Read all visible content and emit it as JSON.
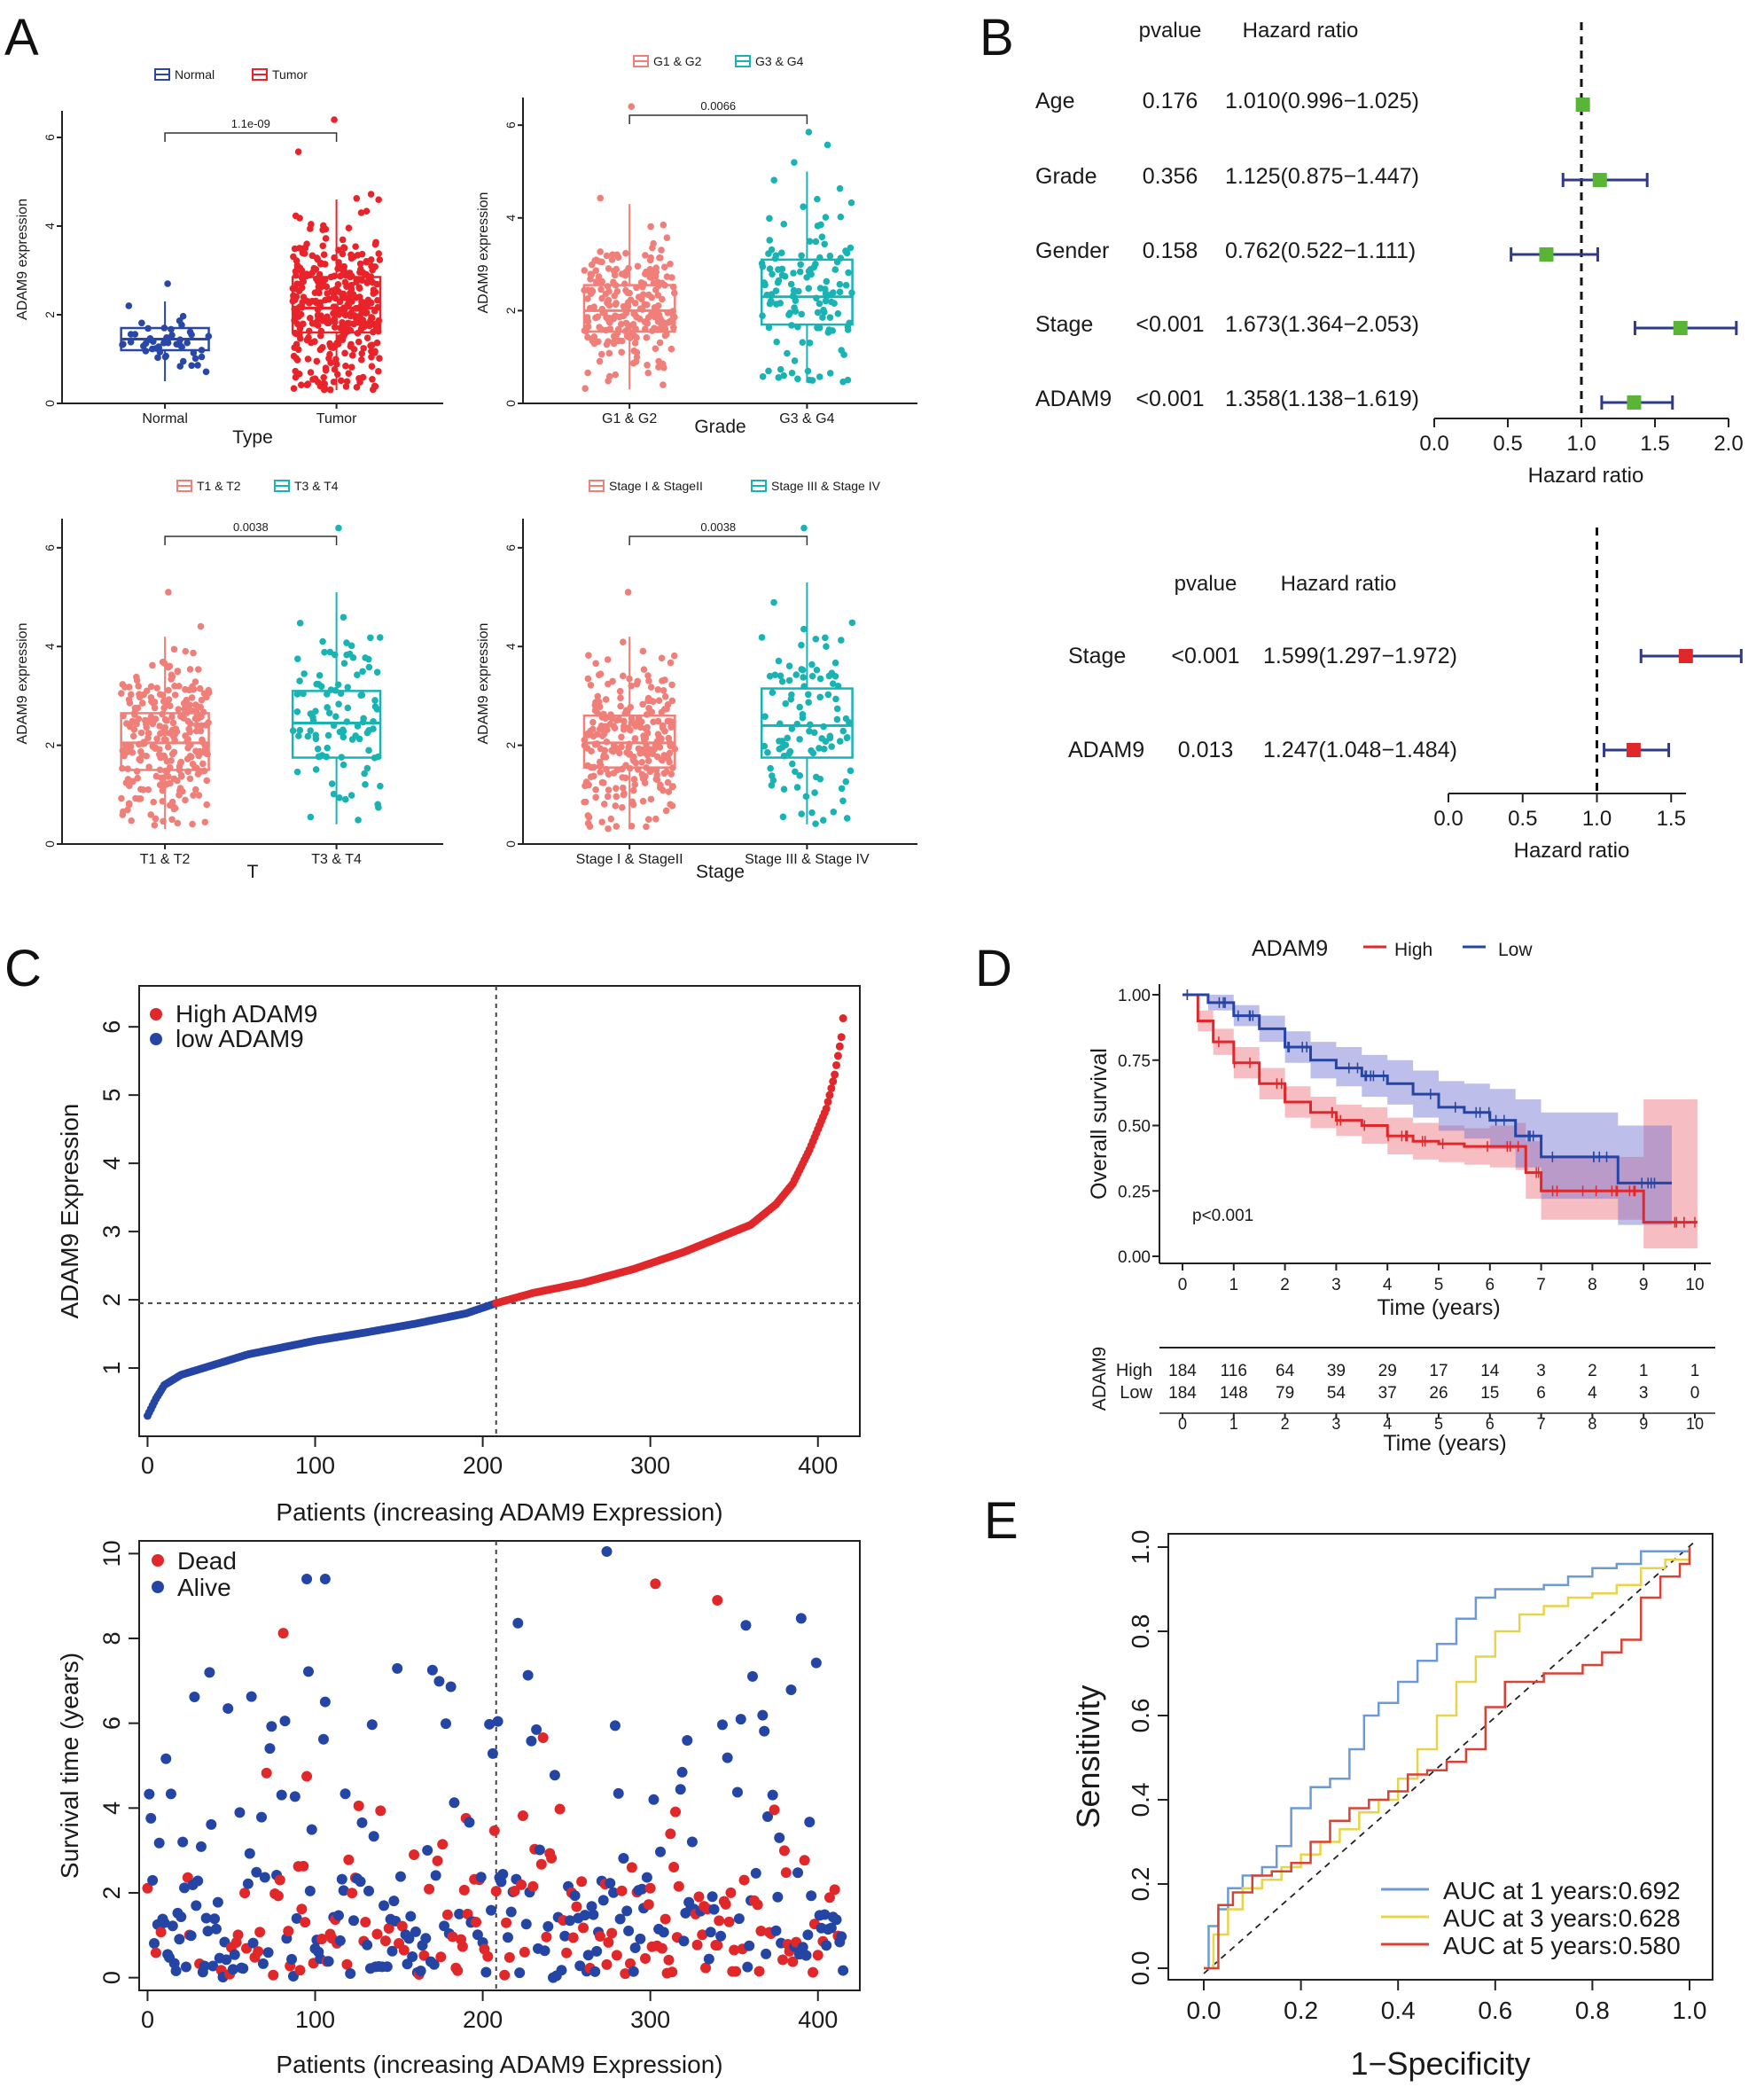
{
  "panel_letters": [
    "A",
    "B",
    "C",
    "D",
    "E"
  ],
  "colors": {
    "normal": "#2847a8",
    "tumor": "#e8242a",
    "salmon": "#ef7f78",
    "teal": "#1ab3b3",
    "green": "#5ab435",
    "navy": "#2f3b8a",
    "red": "#e0282b",
    "blue": "#2545a5",
    "roc1": "#6d9ad6",
    "roc3": "#e8d44a",
    "roc5": "#d74335"
  },
  "chart_data": [
    {
      "id": "A1",
      "type": "box",
      "legend": [
        "Normal",
        "Tumor"
      ],
      "categories": [
        "Normal",
        "Tumor"
      ],
      "xlabel": "Type",
      "ylabel": "ADAM9 expression",
      "ylim": [
        0,
        6.5
      ],
      "yticks": [
        0,
        2,
        4,
        6
      ],
      "pvalue": "1.1e-09",
      "groups": [
        {
          "name": "Normal",
          "q1": 1.2,
          "median": 1.45,
          "q3": 1.7,
          "whisker_low": 0.5,
          "whisker_high": 2.3,
          "max": 2.7,
          "n": 50
        },
        {
          "name": "Tumor",
          "q1": 1.6,
          "median": 2.15,
          "q3": 2.85,
          "whisker_low": 0.3,
          "whisker_high": 4.6,
          "max": 6.4,
          "n": 374
        }
      ]
    },
    {
      "id": "A2",
      "type": "box",
      "legend": [
        "G1 & G2",
        "G3 & G4"
      ],
      "categories": [
        "G1 & G2",
        "G3 & G4"
      ],
      "xlabel": "Grade",
      "ylabel": "ADAM9 expression",
      "ylim": [
        0,
        6.5
      ],
      "yticks": [
        0,
        2,
        4,
        6
      ],
      "pvalue": "0.0066",
      "groups": [
        {
          "name": "G1 & G2",
          "q1": 1.55,
          "median": 2.0,
          "q3": 2.55,
          "whisker_low": 0.3,
          "whisker_high": 4.3,
          "max": 6.4,
          "n": 230
        },
        {
          "name": "G3 & G4",
          "q1": 1.7,
          "median": 2.3,
          "q3": 3.1,
          "whisker_low": 0.45,
          "whisker_high": 5.0,
          "max": 5.85,
          "n": 130
        }
      ]
    },
    {
      "id": "A3",
      "type": "box",
      "legend": [
        "T1 & T2",
        "T3 & T4"
      ],
      "categories": [
        "T1 & T2",
        "T3 & T4"
      ],
      "xlabel": "T",
      "ylabel": "ADAM9 expression",
      "ylim": [
        0,
        6.5
      ],
      "yticks": [
        0,
        2,
        4,
        6
      ],
      "pvalue": "0.0038",
      "groups": [
        {
          "name": "T1 & T2",
          "q1": 1.5,
          "median": 2.05,
          "q3": 2.65,
          "whisker_low": 0.3,
          "whisker_high": 4.2,
          "max": 5.1,
          "n": 270
        },
        {
          "name": "T3 & T4",
          "q1": 1.75,
          "median": 2.45,
          "q3": 3.1,
          "whisker_low": 0.4,
          "whisker_high": 5.1,
          "max": 6.4,
          "n": 100
        }
      ]
    },
    {
      "id": "A4",
      "type": "box",
      "legend": [
        "Stage I & StageII",
        "Stage III & Stage IV"
      ],
      "categories": [
        "Stage I & StageII",
        "Stage III & Stage IV"
      ],
      "xlabel": "Stage",
      "ylabel": "ADAM9 expression",
      "ylim": [
        0,
        6.5
      ],
      "yticks": [
        0,
        2,
        4,
        6
      ],
      "pvalue": "0.0038",
      "groups": [
        {
          "name": "Stage I & StageII",
          "q1": 1.55,
          "median": 2.05,
          "q3": 2.6,
          "whisker_low": 0.3,
          "whisker_high": 4.2,
          "max": 5.1,
          "n": 260
        },
        {
          "name": "Stage III & Stage IV",
          "q1": 1.75,
          "median": 2.4,
          "q3": 3.15,
          "whisker_low": 0.4,
          "whisker_high": 5.3,
          "max": 6.4,
          "n": 105
        }
      ]
    },
    {
      "id": "B1",
      "type": "forest",
      "title_pvalue": "pvalue",
      "title_hr": "Hazard ratio",
      "xlabel": "Hazard ratio",
      "xlim": [
        0,
        2
      ],
      "xticks": [
        "0.0",
        "0.5",
        "1.0",
        "1.5",
        "2.0"
      ],
      "rows": [
        {
          "label": "Age",
          "pvalue": "0.176",
          "hr_text": "1.010(0.996−1.025)",
          "hr": 1.01,
          "low": 0.996,
          "high": 1.025
        },
        {
          "label": "Grade",
          "pvalue": "0.356",
          "hr_text": "1.125(0.875−1.447)",
          "hr": 1.125,
          "low": 0.875,
          "high": 1.447
        },
        {
          "label": "Gender",
          "pvalue": "0.158",
          "hr_text": "0.762(0.522−1.111)",
          "hr": 0.762,
          "low": 0.522,
          "high": 1.111
        },
        {
          "label": "Stage",
          "pvalue": "<0.001",
          "hr_text": "1.673(1.364−2.053)",
          "hr": 1.673,
          "low": 1.364,
          "high": 2.053
        },
        {
          "label": "ADAM9",
          "pvalue": "<0.001",
          "hr_text": "1.358(1.138−1.619)",
          "hr": 1.358,
          "low": 1.138,
          "high": 1.619
        }
      ]
    },
    {
      "id": "B2",
      "type": "forest",
      "title_pvalue": "pvalue",
      "title_hr": "Hazard ratio",
      "xlabel": "Hazard ratio",
      "xlim": [
        0,
        1.6
      ],
      "xticks": [
        "0.0",
        "0.5",
        "1.0",
        "1.5"
      ],
      "rows": [
        {
          "label": "Stage",
          "pvalue": "<0.001",
          "hr_text": "1.599(1.297−1.972)",
          "hr": 1.599,
          "low": 1.297,
          "high": 1.972
        },
        {
          "label": "ADAM9",
          "pvalue": "0.013",
          "hr_text": "1.247(1.048−1.484)",
          "hr": 1.247,
          "low": 1.048,
          "high": 1.484
        }
      ]
    },
    {
      "id": "C1",
      "type": "scatter",
      "legend": [
        "High ADAM9",
        "low ADAM9"
      ],
      "xlabel": "Patients (increasing ADAM9 Expression)",
      "ylabel": "ADAM9 Expression",
      "xlim": [
        -5,
        425
      ],
      "ylim": [
        0,
        6.6
      ],
      "xticks": [
        0,
        100,
        200,
        300,
        400
      ],
      "yticks": [
        1,
        2,
        3,
        4,
        5,
        6
      ],
      "cutoff_x": 208,
      "cutoff_y": 1.95,
      "n": 416,
      "curve": [
        [
          0,
          0.3
        ],
        [
          5,
          0.55
        ],
        [
          10,
          0.75
        ],
        [
          20,
          0.9
        ],
        [
          40,
          1.05
        ],
        [
          60,
          1.2
        ],
        [
          80,
          1.3
        ],
        [
          100,
          1.4
        ],
        [
          130,
          1.52
        ],
        [
          160,
          1.65
        ],
        [
          190,
          1.8
        ],
        [
          208,
          1.95
        ],
        [
          230,
          2.1
        ],
        [
          260,
          2.25
        ],
        [
          290,
          2.45
        ],
        [
          320,
          2.7
        ],
        [
          340,
          2.9
        ],
        [
          360,
          3.1
        ],
        [
          375,
          3.4
        ],
        [
          385,
          3.7
        ],
        [
          395,
          4.2
        ],
        [
          405,
          4.8
        ],
        [
          410,
          5.3
        ],
        [
          414,
          5.85
        ],
        [
          416,
          6.4
        ]
      ]
    },
    {
      "id": "C2",
      "type": "scatter",
      "legend": [
        "Dead",
        "Alive"
      ],
      "xlabel": "Patients (increasing ADAM9 Expression)",
      "ylabel": "Survival time (years)",
      "xlim": [
        -5,
        425
      ],
      "ylim": [
        -0.3,
        10.3
      ],
      "xticks": [
        0,
        100,
        200,
        300,
        400
      ],
      "yticks": [
        0,
        2,
        4,
        6,
        8,
        10
      ],
      "cutoff_x": 208
    },
    {
      "id": "D",
      "type": "line",
      "title": "ADAM9",
      "legend": [
        "High",
        "Low"
      ],
      "xlabel": "Time (years)",
      "ylabel": "Overall survival",
      "xlim": [
        0,
        10
      ],
      "ylim": [
        0,
        1
      ],
      "yticks": [
        "0.00",
        "0.25",
        "0.50",
        "0.75",
        "1.00"
      ],
      "xticks": [
        0,
        1,
        2,
        3,
        4,
        5,
        6,
        7,
        8,
        9,
        10
      ],
      "pvalue": "p<0.001",
      "series": [
        {
          "name": "High",
          "x": [
            0,
            0.3,
            0.6,
            1,
            1.5,
            2,
            2.5,
            3,
            3.5,
            4,
            4.5,
            5,
            5.5,
            6,
            6.5,
            6.7,
            7,
            8,
            8.5,
            9,
            10
          ],
          "y": [
            1,
            0.9,
            0.82,
            0.74,
            0.66,
            0.59,
            0.55,
            0.52,
            0.5,
            0.46,
            0.44,
            0.43,
            0.42,
            0.42,
            0.42,
            0.32,
            0.25,
            0.25,
            0.25,
            0.13,
            0.13
          ],
          "low": [
            1,
            0.86,
            0.77,
            0.68,
            0.6,
            0.53,
            0.49,
            0.46,
            0.43,
            0.39,
            0.37,
            0.36,
            0.35,
            0.34,
            0.33,
            0.22,
            0.14,
            0.14,
            0.14,
            0.03,
            0.03
          ],
          "high": [
            1,
            0.94,
            0.87,
            0.8,
            0.72,
            0.65,
            0.61,
            0.58,
            0.57,
            0.53,
            0.51,
            0.5,
            0.49,
            0.5,
            0.51,
            0.44,
            0.38,
            0.38,
            0.38,
            0.6,
            0.6
          ]
        },
        {
          "name": "Low",
          "x": [
            0,
            0.5,
            1,
            1.5,
            2,
            2.5,
            3,
            3.5,
            4,
            4.5,
            5,
            5.5,
            6,
            6.5,
            7,
            7.5,
            8,
            8.5,
            9,
            9.5
          ],
          "y": [
            1,
            0.97,
            0.92,
            0.87,
            0.8,
            0.75,
            0.72,
            0.69,
            0.66,
            0.62,
            0.57,
            0.55,
            0.52,
            0.46,
            0.38,
            0.38,
            0.38,
            0.28,
            0.28,
            0.28
          ],
          "low": [
            1,
            0.94,
            0.88,
            0.82,
            0.74,
            0.68,
            0.65,
            0.61,
            0.58,
            0.53,
            0.48,
            0.45,
            0.41,
            0.34,
            0.22,
            0.22,
            0.22,
            0.12,
            0.12,
            0.12
          ],
          "high": [
            1,
            1,
            0.96,
            0.92,
            0.86,
            0.82,
            0.8,
            0.77,
            0.75,
            0.71,
            0.67,
            0.66,
            0.64,
            0.6,
            0.55,
            0.55,
            0.55,
            0.5,
            0.5,
            0.5
          ]
        }
      ],
      "risk_table": {
        "title": "ADAM9",
        "xlabel": "Time (years)",
        "rows": [
          {
            "name": "High",
            "values": [
              "184",
              "116",
              "64",
              "39",
              "29",
              "17",
              "14",
              "3",
              "2",
              "1",
              "1"
            ]
          },
          {
            "name": "Low",
            "values": [
              "184",
              "148",
              "79",
              "54",
              "37",
              "26",
              "15",
              "6",
              "4",
              "3",
              "0"
            ]
          }
        ],
        "times": [
          "0",
          "1",
          "2",
          "3",
          "4",
          "5",
          "6",
          "7",
          "8",
          "9",
          "10"
        ]
      }
    },
    {
      "id": "E",
      "type": "line",
      "xlabel": "1−Specificity",
      "ylabel": "Sensitivity",
      "xlim": [
        0,
        1
      ],
      "ylim": [
        0,
        1
      ],
      "xticks": [
        "0.0",
        "0.2",
        "0.4",
        "0.6",
        "0.8",
        "1.0"
      ],
      "yticks": [
        "0.0",
        "0.2",
        "0.4",
        "0.6",
        "0.8",
        "1.0"
      ],
      "series": [
        {
          "name": "AUC at 1 years:0.692",
          "x": [
            0,
            0.01,
            0.03,
            0.05,
            0.08,
            0.12,
            0.15,
            0.18,
            0.22,
            0.26,
            0.3,
            0.33,
            0.36,
            0.4,
            0.44,
            0.48,
            0.52,
            0.56,
            0.6,
            0.65,
            0.7,
            0.75,
            0.8,
            0.85,
            0.9,
            0.95,
            1.0
          ],
          "y": [
            0,
            0.1,
            0.14,
            0.19,
            0.22,
            0.24,
            0.29,
            0.38,
            0.43,
            0.45,
            0.52,
            0.6,
            0.63,
            0.68,
            0.73,
            0.77,
            0.83,
            0.88,
            0.9,
            0.9,
            0.91,
            0.93,
            0.95,
            0.96,
            0.99,
            0.99,
            1.0
          ]
        },
        {
          "name": "AUC at 3 years:0.628",
          "x": [
            0,
            0.02,
            0.05,
            0.08,
            0.12,
            0.16,
            0.2,
            0.24,
            0.28,
            0.32,
            0.36,
            0.4,
            0.44,
            0.48,
            0.52,
            0.56,
            0.6,
            0.65,
            0.7,
            0.75,
            0.8,
            0.85,
            0.9,
            0.95,
            1.0
          ],
          "y": [
            0,
            0.08,
            0.14,
            0.19,
            0.21,
            0.24,
            0.27,
            0.3,
            0.33,
            0.37,
            0.4,
            0.45,
            0.52,
            0.6,
            0.68,
            0.74,
            0.8,
            0.84,
            0.86,
            0.88,
            0.89,
            0.91,
            0.95,
            0.97,
            1.0
          ]
        },
        {
          "name": "AUC at 5 years:0.580",
          "x": [
            0,
            0.03,
            0.06,
            0.1,
            0.14,
            0.18,
            0.22,
            0.26,
            0.3,
            0.34,
            0.38,
            0.42,
            0.46,
            0.5,
            0.54,
            0.58,
            0.62,
            0.66,
            0.7,
            0.74,
            0.78,
            0.82,
            0.86,
            0.9,
            0.94,
            0.98,
            1.0
          ],
          "y": [
            0,
            0.15,
            0.18,
            0.22,
            0.23,
            0.25,
            0.3,
            0.35,
            0.38,
            0.4,
            0.42,
            0.46,
            0.47,
            0.49,
            0.52,
            0.62,
            0.68,
            0.68,
            0.7,
            0.7,
            0.72,
            0.75,
            0.78,
            0.88,
            0.93,
            0.96,
            1.0
          ]
        }
      ]
    }
  ]
}
